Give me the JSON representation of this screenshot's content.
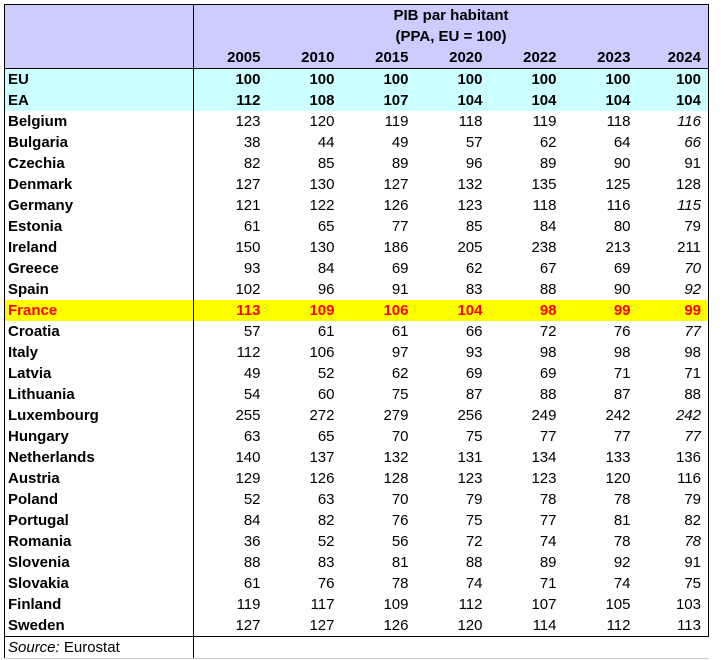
{
  "header": {
    "title": "PIB par habitant",
    "subtitle": "(PPA, EU = 100)",
    "years": [
      "2005",
      "2010",
      "2015",
      "2020",
      "2022",
      "2023",
      "2024"
    ]
  },
  "rows": [
    {
      "name": "EU",
      "values": [
        "100",
        "100",
        "100",
        "100",
        "100",
        "100",
        "100"
      ],
      "style": "aggregate"
    },
    {
      "name": "EA",
      "values": [
        "112",
        "108",
        "107",
        "104",
        "104",
        "104",
        "104"
      ],
      "style": "aggregate"
    },
    {
      "name": "Belgium",
      "values": [
        "123",
        "120",
        "119",
        "118",
        "119",
        "118",
        "116"
      ],
      "italic_last": true
    },
    {
      "name": "Bulgaria",
      "values": [
        "38",
        "44",
        "49",
        "57",
        "62",
        "64",
        "66"
      ],
      "italic_last": true
    },
    {
      "name": "Czechia",
      "values": [
        "82",
        "85",
        "89",
        "96",
        "89",
        "90",
        "91"
      ]
    },
    {
      "name": "Denmark",
      "values": [
        "127",
        "130",
        "127",
        "132",
        "135",
        "125",
        "128"
      ]
    },
    {
      "name": "Germany",
      "values": [
        "121",
        "122",
        "126",
        "123",
        "118",
        "116",
        "115"
      ],
      "italic_last": true
    },
    {
      "name": "Estonia",
      "values": [
        "61",
        "65",
        "77",
        "85",
        "84",
        "80",
        "79"
      ]
    },
    {
      "name": "Ireland",
      "values": [
        "150",
        "130",
        "186",
        "205",
        "238",
        "213",
        "211"
      ]
    },
    {
      "name": "Greece",
      "values": [
        "93",
        "84",
        "69",
        "62",
        "67",
        "69",
        "70"
      ],
      "italic_last": true
    },
    {
      "name": "Spain",
      "values": [
        "102",
        "96",
        "91",
        "83",
        "88",
        "90",
        "92"
      ],
      "italic_last": true
    },
    {
      "name": "France",
      "values": [
        "113",
        "109",
        "106",
        "104",
        "98",
        "99",
        "99"
      ],
      "style": "highlight"
    },
    {
      "name": "Croatia",
      "values": [
        "57",
        "61",
        "61",
        "66",
        "72",
        "76",
        "77"
      ],
      "italic_last": true
    },
    {
      "name": "Italy",
      "values": [
        "112",
        "106",
        "97",
        "93",
        "98",
        "98",
        "98"
      ]
    },
    {
      "name": "Latvia",
      "values": [
        "49",
        "52",
        "62",
        "69",
        "69",
        "71",
        "71"
      ]
    },
    {
      "name": "Lithuania",
      "values": [
        "54",
        "60",
        "75",
        "87",
        "88",
        "87",
        "88"
      ]
    },
    {
      "name": "Luxembourg",
      "values": [
        "255",
        "272",
        "279",
        "256",
        "249",
        "242",
        "242"
      ],
      "italic_last": true
    },
    {
      "name": "Hungary",
      "values": [
        "63",
        "65",
        "70",
        "75",
        "77",
        "77",
        "77"
      ],
      "italic_last": true
    },
    {
      "name": "Netherlands",
      "values": [
        "140",
        "137",
        "132",
        "131",
        "134",
        "133",
        "136"
      ]
    },
    {
      "name": "Austria",
      "values": [
        "129",
        "126",
        "128",
        "123",
        "123",
        "120",
        "116"
      ]
    },
    {
      "name": "Poland",
      "values": [
        "52",
        "63",
        "70",
        "79",
        "78",
        "78",
        "79"
      ]
    },
    {
      "name": "Portugal",
      "values": [
        "84",
        "82",
        "76",
        "75",
        "77",
        "81",
        "82"
      ]
    },
    {
      "name": "Romania",
      "values": [
        "36",
        "52",
        "56",
        "72",
        "74",
        "78",
        "78"
      ],
      "italic_last": true
    },
    {
      "name": "Slovenia",
      "values": [
        "88",
        "83",
        "81",
        "88",
        "89",
        "92",
        "91"
      ]
    },
    {
      "name": "Slovakia",
      "values": [
        "61",
        "76",
        "78",
        "74",
        "71",
        "74",
        "75"
      ]
    },
    {
      "name": "Finland",
      "values": [
        "119",
        "117",
        "109",
        "112",
        "107",
        "105",
        "103"
      ]
    },
    {
      "name": "Sweden",
      "values": [
        "127",
        "127",
        "126",
        "120",
        "114",
        "112",
        "113"
      ]
    }
  ],
  "footer": {
    "source_label": "Source:",
    "source_value": "Eurostat"
  },
  "colors": {
    "header_bg": "#ccccff",
    "aggregate_bg": "#ccffff",
    "highlight_bg": "#ffff00",
    "highlight_text": "#ff0000"
  }
}
